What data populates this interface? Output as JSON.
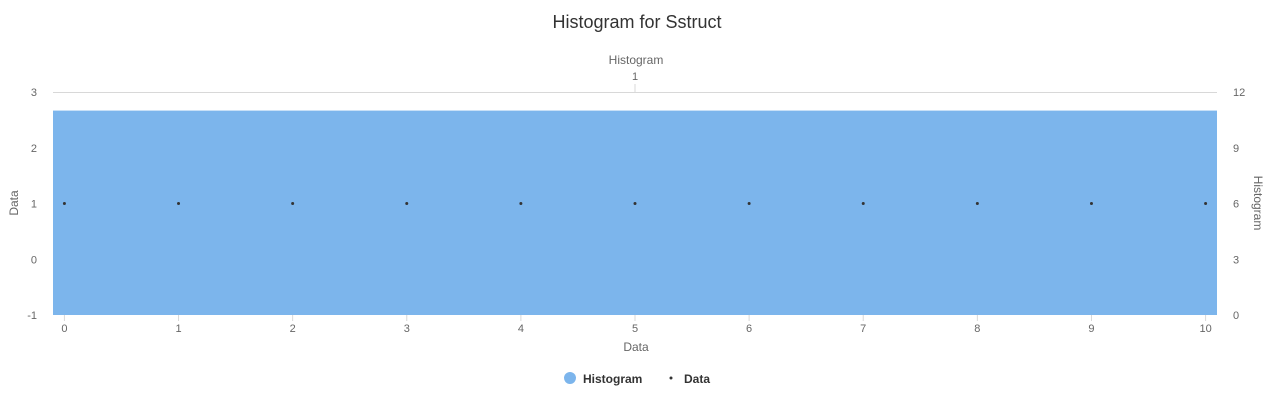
{
  "chart_data": {
    "type": "bar",
    "title": "Histogram for Sstruct",
    "colors": {
      "histogram": "#7cb5ec",
      "data": "#333333",
      "grid": "#d8d8d8"
    },
    "x_bottom": {
      "title": "Data",
      "ticks": [
        "0",
        "1",
        "2",
        "3",
        "4",
        "5",
        "6",
        "7",
        "8",
        "9",
        "10"
      ],
      "range": [
        -0.1,
        10.1
      ]
    },
    "x_top": {
      "title": "Histogram",
      "ticks": [
        "1"
      ]
    },
    "y_left": {
      "title": "Data",
      "ticks": [
        "-1",
        "0",
        "1",
        "2",
        "3"
      ],
      "range": [
        -1,
        3
      ]
    },
    "y_right": {
      "title": "Histogram",
      "ticks": [
        "0",
        "3",
        "6",
        "9",
        "12"
      ],
      "range": [
        0,
        12
      ]
    },
    "series": [
      {
        "name": "Histogram",
        "type": "bar",
        "axis": "right",
        "bins": [
          {
            "start": -0.1,
            "end": 10.1,
            "count": 11
          }
        ]
      },
      {
        "name": "Data",
        "type": "scatter",
        "axis": "left",
        "x": [
          0,
          1,
          2,
          3,
          4,
          5,
          6,
          7,
          8,
          9,
          10
        ],
        "y": [
          1,
          1,
          1,
          1,
          1,
          1,
          1,
          1,
          1,
          1,
          1
        ]
      }
    ],
    "legend": {
      "position": "bottom-center",
      "entries": [
        "Histogram",
        "Data"
      ]
    }
  }
}
